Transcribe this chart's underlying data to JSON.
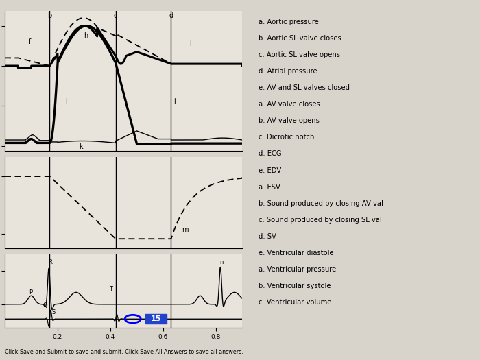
{
  "bg_color": "#d8d4cc",
  "chart_bg": "#e8e4dc",
  "right_bg": "#e0ddd8",
  "right_panel_lines": [
    "a. Aortic pressure",
    "b. Aortic SL valve closes",
    "c. Aortic SL valve opens",
    "d. Atrial pressure",
    "e. AV and SL valves closed",
    "a. AV valve closes",
    "b. AV valve opens",
    "c. Dicrotic notch",
    "d. ECG",
    "e. EDV",
    "a. ESV",
    "b. Sound produced by closing AV val",
    "c. Sound produced by closing SL val",
    "d. SV",
    "e. Ventricular diastole",
    "a. Ventricular pressure",
    "b. Ventricular systole",
    "c. Ventricular volume"
  ],
  "pressure_ylim": [
    -5,
    135
  ],
  "pressure_yticks": [
    0,
    40,
    80,
    120
  ],
  "volume_ylim": [
    45,
    140
  ],
  "volume_yticks": [
    60,
    120
  ],
  "ecg_ylim": [
    -0.35,
    0.75
  ],
  "ecg_yticks": [
    0.0,
    0.5
  ],
  "xlim": [
    0.0,
    0.9
  ],
  "xticks": [
    0.2,
    0.4,
    0.6,
    0.8
  ],
  "vlines": [
    0.17,
    0.42,
    0.63
  ],
  "bottom_text": "Click Save and Submit to save and submit. Click Save All Answers to save all answers."
}
